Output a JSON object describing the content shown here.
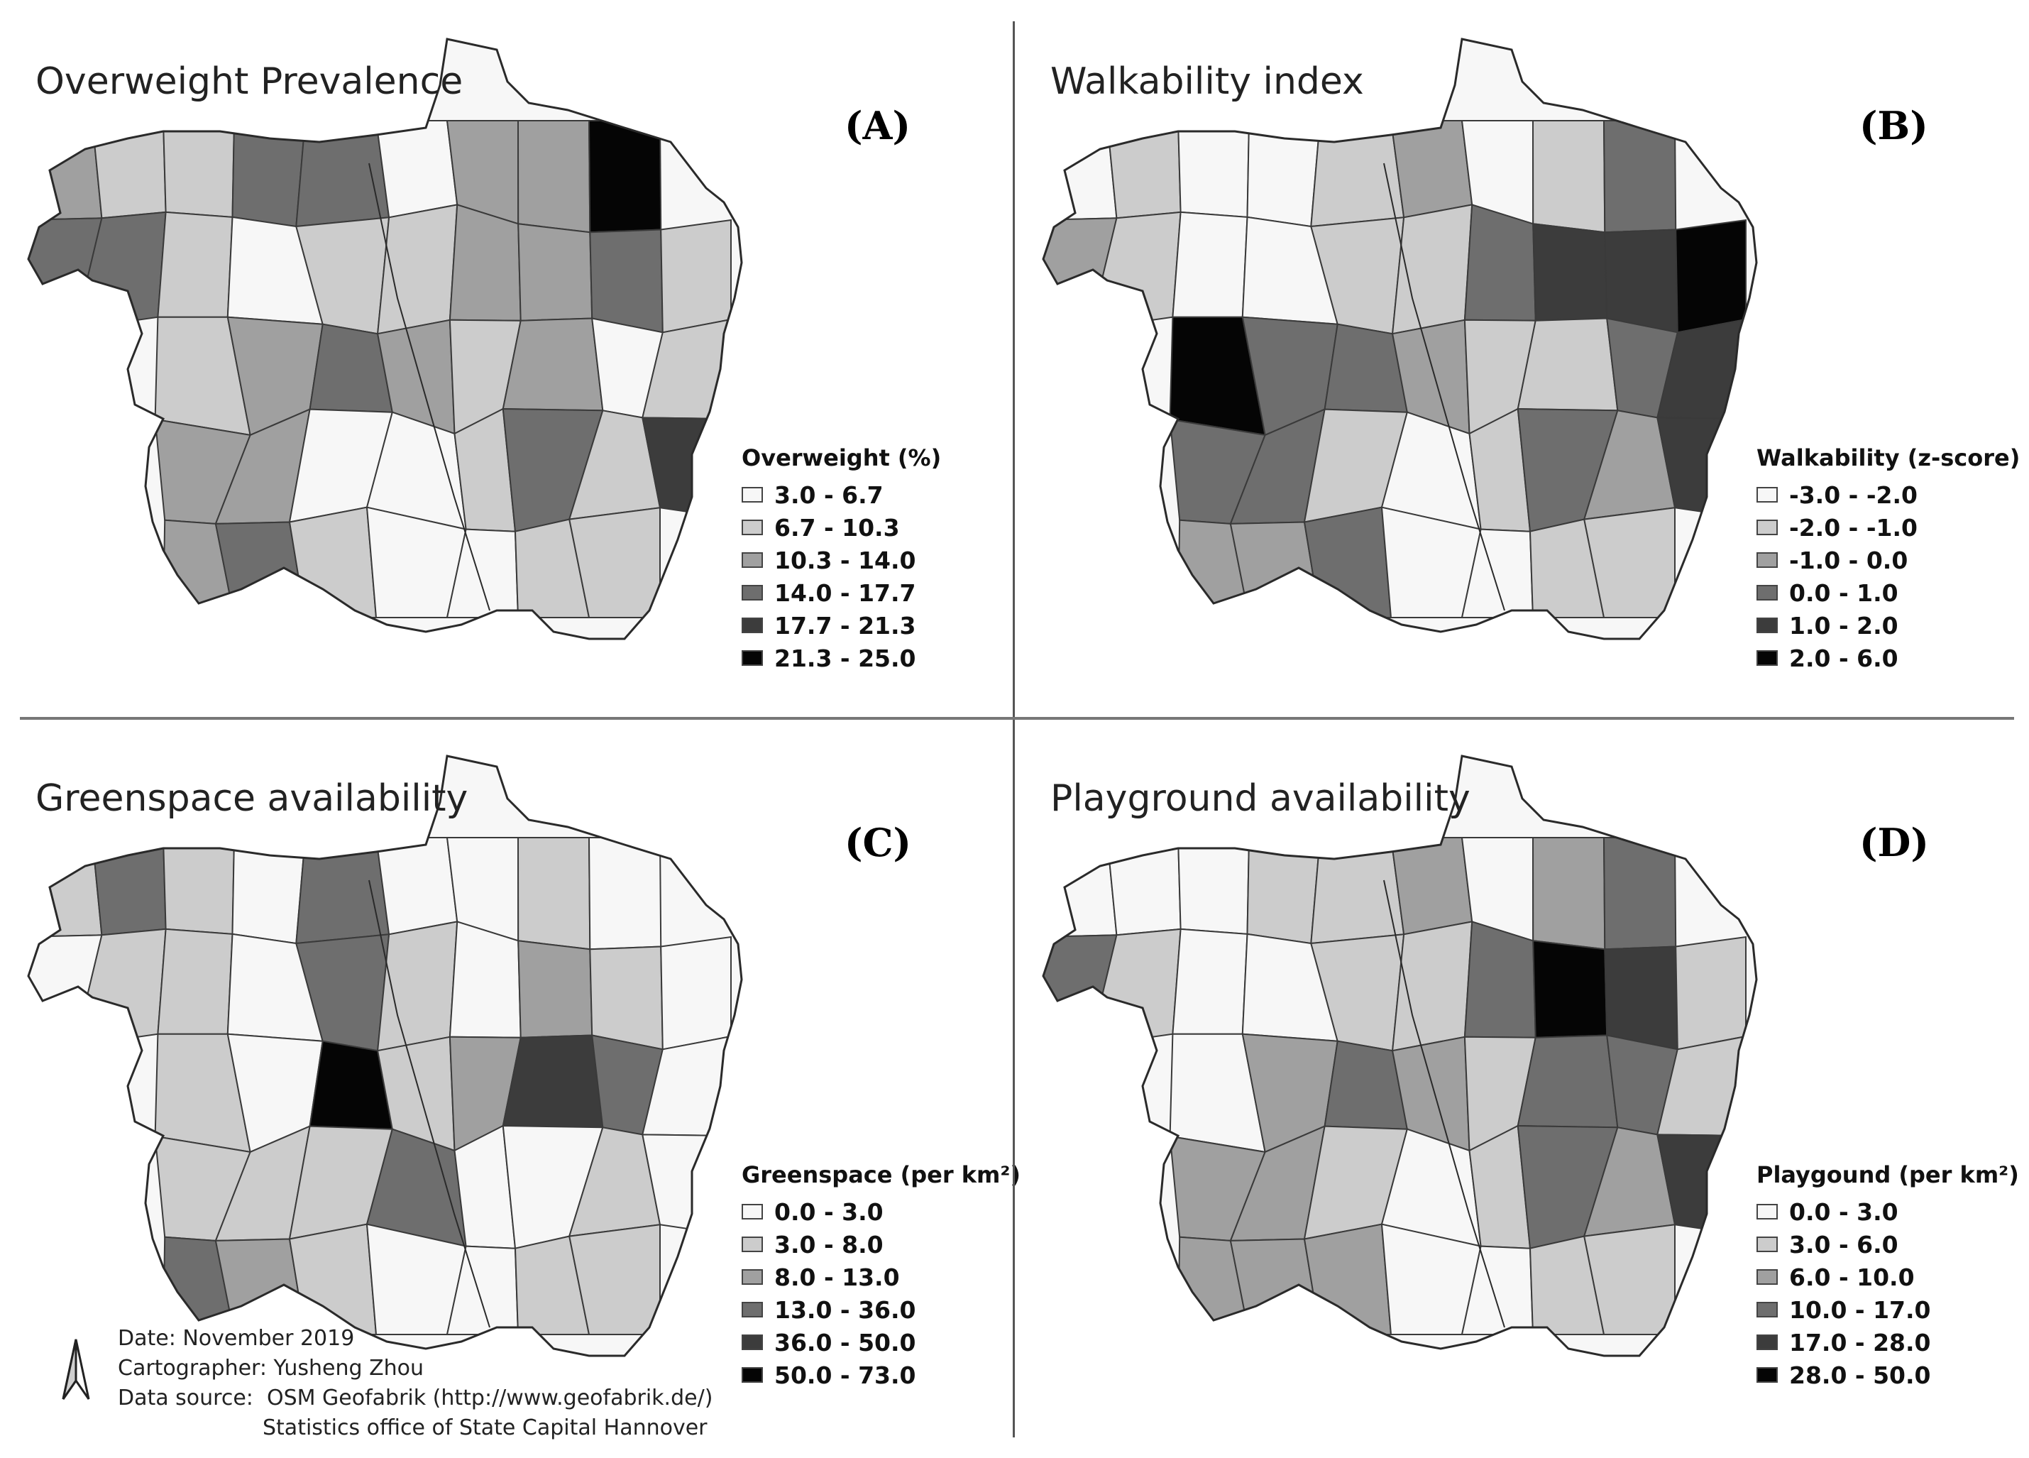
{
  "palette": [
    "#f7f7f7",
    "#cccccc",
    "#a0a0a0",
    "#6e6e6e",
    "#3c3c3c",
    "#050505"
  ],
  "panels": [
    {
      "id": "A",
      "title": "Overweight Prevalence",
      "letter": "(A)",
      "legend_title": "Overweight (%)",
      "legend": [
        "3.0 - 6.7",
        "6.7 - 10.3",
        "10.3 - 14.0",
        "14.0 - 17.7",
        "17.7 - 21.3",
        "21.3 - 25.0"
      ],
      "classes": [
        2,
        1,
        1,
        3,
        3,
        0,
        2,
        2,
        5,
        3,
        3,
        1,
        0,
        1,
        1,
        2,
        2,
        3,
        1,
        1,
        2,
        3,
        2,
        1,
        2,
        0,
        1,
        2,
        2,
        0,
        0,
        1,
        3,
        1,
        4,
        2,
        3,
        1,
        0,
        0,
        1,
        1,
        2,
        1,
        2,
        0,
        0,
        2
      ]
    },
    {
      "id": "B",
      "title": "Walkability index",
      "letter": "(B)",
      "legend_title": "Walkability (z-score)",
      "legend": [
        "-3.0 - -2.0",
        "-2.0 - -1.0",
        "-1.0 - 0.0",
        "0.0 - 1.0",
        "1.0 - 2.0",
        "2.0 - 6.0"
      ],
      "classes": [
        0,
        1,
        0,
        0,
        1,
        2,
        0,
        1,
        3,
        2,
        1,
        0,
        0,
        1,
        1,
        3,
        4,
        4,
        5,
        5,
        3,
        3,
        2,
        1,
        1,
        3,
        4,
        3,
        3,
        1,
        0,
        1,
        3,
        2,
        4,
        2,
        2,
        3,
        0,
        0,
        1,
        1,
        3,
        1,
        2,
        1,
        0,
        0
      ]
    },
    {
      "id": "C",
      "title": "Greenspace availability",
      "letter": "(C)",
      "legend_title": "Greenspace (per km²)",
      "legend": [
        "0.0 - 3.0",
        "3.0 - 8.0",
        "8.0 - 13.0",
        "13.0 - 36.0",
        "36.0 - 50.0",
        "50.0 - 73.0"
      ],
      "classes": [
        1,
        3,
        1,
        0,
        3,
        0,
        0,
        1,
        0,
        0,
        1,
        1,
        0,
        3,
        1,
        0,
        2,
        1,
        0,
        1,
        0,
        5,
        1,
        2,
        4,
        3,
        0,
        1,
        1,
        1,
        3,
        0,
        0,
        1,
        0,
        3,
        2,
        1,
        0,
        0,
        1,
        1,
        1,
        0,
        3,
        3,
        0,
        1
      ]
    },
    {
      "id": "D",
      "title": "Playground availability",
      "letter": "(D)",
      "legend_title": "Playgound (per km²)",
      "legend": [
        "0.0 - 3.0",
        "3.0 - 6.0",
        "6.0 - 10.0",
        "10.0 - 17.0",
        "17.0 - 28.0",
        "28.0 - 50.0"
      ],
      "classes": [
        0,
        0,
        0,
        1,
        1,
        2,
        0,
        2,
        3,
        3,
        1,
        0,
        0,
        1,
        1,
        3,
        5,
        4,
        1,
        0,
        2,
        3,
        2,
        1,
        3,
        3,
        1,
        2,
        2,
        1,
        0,
        1,
        3,
        2,
        4,
        2,
        2,
        2,
        0,
        0,
        1,
        1,
        2,
        1,
        2,
        0,
        0,
        2
      ]
    }
  ],
  "credits": {
    "date": "Date: November 2019",
    "cartographer": "Cartographer: Yusheng Zhou",
    "data_source": "Data source:  OSM Geofabrik (http://www.geofabrik.de/)",
    "data_source_2": "Statistics office of State Capital Hannover"
  },
  "icons": {
    "north_arrow": "north-arrow-icon"
  }
}
